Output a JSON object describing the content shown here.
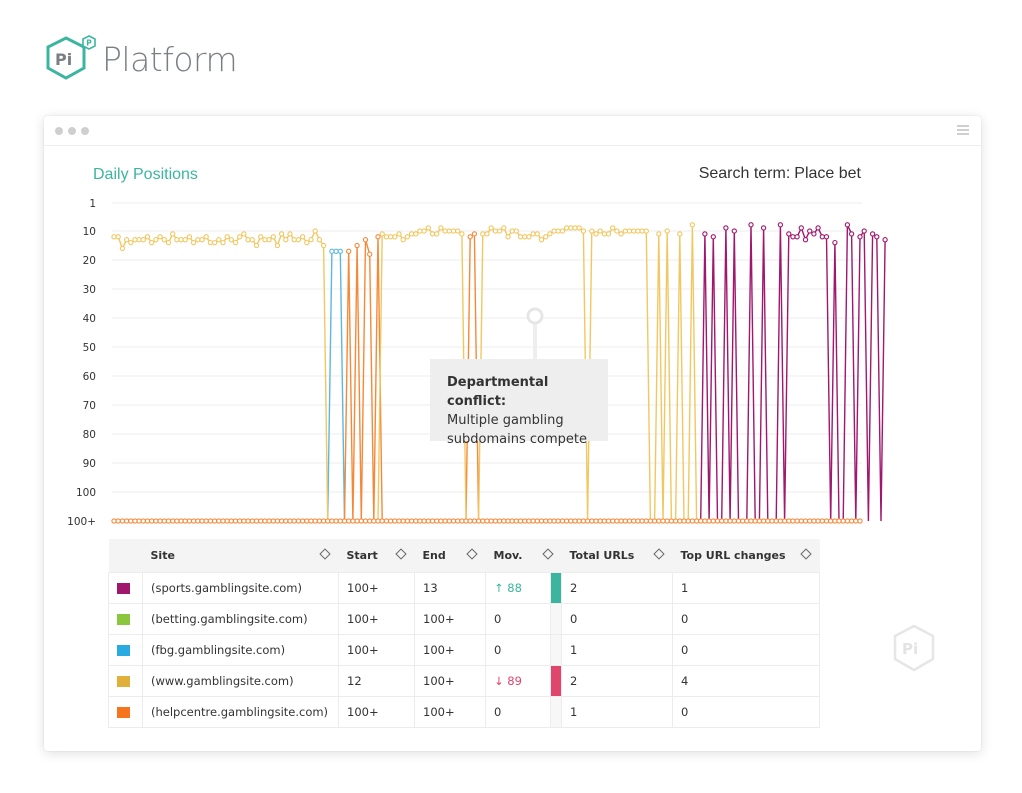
{
  "brand": {
    "logo_text": "Pi",
    "logo_superscript": "P",
    "name": "Platform",
    "color": "#3cb5a0"
  },
  "chart_title": "Daily Positions",
  "search_term": {
    "label": "Search term:",
    "value": "Place bet"
  },
  "callout": {
    "title": "Departmental conflict:",
    "line1": "Multiple gambling",
    "line2": "subdomains compete"
  },
  "chart_data": {
    "type": "line",
    "title": "Daily Positions",
    "xlabel": "",
    "ylabel": "",
    "y_reversed": true,
    "y_ticks": [
      "1",
      "10",
      "20",
      "30",
      "40",
      "50",
      "60",
      "70",
      "80",
      "90",
      "100",
      "100+"
    ],
    "ylim": [
      1,
      101
    ],
    "grid": true,
    "baseline_label": "100+",
    "series": [
      {
        "name": "(www.gamblingsite.com)",
        "color": "#f2c761",
        "values": [
          12,
          12,
          16,
          13,
          14,
          13,
          13,
          13,
          12,
          14,
          13,
          12,
          13,
          14,
          11,
          13,
          13,
          13,
          12,
          14,
          13,
          13,
          12,
          14,
          14,
          13,
          14,
          12,
          13,
          14,
          12,
          11,
          13,
          13,
          15,
          12,
          13,
          13,
          12,
          15,
          11,
          13,
          11,
          13,
          13,
          12,
          14,
          13,
          10,
          13,
          15,
          101,
          101,
          101,
          101,
          101,
          101,
          101,
          101,
          101,
          101,
          101,
          101,
          101,
          11,
          12,
          12,
          12,
          11,
          13,
          12,
          11,
          11,
          10,
          10,
          9,
          11,
          11,
          9,
          10,
          10,
          10,
          10,
          11,
          101,
          101,
          101,
          101,
          11,
          11,
          9,
          10,
          10,
          9,
          12,
          10,
          10,
          12,
          12,
          12,
          11,
          11,
          13,
          12,
          11,
          10,
          10,
          10,
          9,
          9,
          9,
          9,
          10,
          101,
          10,
          11,
          10,
          11,
          11,
          9,
          10,
          11,
          10,
          10,
          10,
          10,
          10,
          10,
          101,
          101,
          11,
          101,
          10,
          101,
          101,
          11,
          101,
          101,
          8,
          101,
          101,
          101,
          101,
          101,
          101,
          101,
          101,
          101,
          101,
          101,
          101,
          101,
          101,
          101,
          101,
          101,
          101,
          101,
          101,
          101,
          101,
          101,
          101,
          101,
          101,
          101,
          101,
          101,
          101,
          101,
          101,
          101,
          101,
          101,
          101,
          101,
          101,
          101,
          101
        ]
      },
      {
        "name": "(helpcentre.gamblingsite.com)",
        "color": "#f5893a",
        "values": [
          101,
          101,
          101,
          101,
          101,
          101,
          101,
          101,
          101,
          101,
          101,
          101,
          101,
          101,
          101,
          101,
          101,
          101,
          101,
          101,
          101,
          101,
          101,
          101,
          101,
          101,
          101,
          101,
          101,
          101,
          101,
          101,
          101,
          101,
          101,
          101,
          101,
          101,
          101,
          101,
          101,
          101,
          101,
          101,
          101,
          101,
          101,
          101,
          101,
          101,
          101,
          101,
          101,
          101,
          101,
          101,
          17,
          101,
          15,
          101,
          13,
          18,
          101,
          12,
          101,
          101,
          101,
          101,
          101,
          101,
          101,
          101,
          101,
          101,
          101,
          101,
          101,
          101,
          101,
          101,
          101,
          101,
          101,
          101,
          101,
          12,
          11,
          101,
          101,
          101,
          101,
          101,
          101,
          101,
          101,
          101,
          101,
          101,
          101,
          101,
          101,
          101,
          101,
          101,
          101,
          101,
          101,
          101,
          101,
          101,
          101,
          101,
          101,
          101,
          101,
          101,
          101,
          101,
          101,
          101,
          101,
          101,
          101,
          101,
          101,
          101,
          101,
          101,
          101,
          101,
          101,
          101,
          101,
          101,
          101,
          101,
          101,
          101,
          101,
          101,
          101,
          101,
          101,
          101,
          101,
          101,
          101,
          101,
          101,
          101,
          101,
          101,
          101,
          101,
          101,
          101,
          101,
          101,
          101,
          101,
          101,
          101,
          101,
          101,
          101,
          101,
          101,
          101,
          101,
          101,
          101,
          101,
          101,
          101,
          101,
          101,
          101,
          101,
          101
        ]
      },
      {
        "name": "(sports.gamblingsite.com)",
        "color": "#a0176e",
        "values": [
          101,
          101,
          101,
          101,
          101,
          101,
          101,
          101,
          101,
          101,
          101,
          101,
          101,
          101,
          101,
          101,
          101,
          101,
          101,
          101,
          101,
          101,
          101,
          101,
          101,
          101,
          101,
          101,
          101,
          101,
          101,
          101,
          101,
          101,
          101,
          101,
          101,
          101,
          101,
          101,
          101,
          101,
          101,
          101,
          101,
          101,
          101,
          101,
          101,
          101,
          101,
          101,
          101,
          101,
          101,
          101,
          101,
          101,
          101,
          101,
          101,
          101,
          101,
          101,
          101,
          101,
          101,
          101,
          101,
          101,
          101,
          101,
          101,
          101,
          101,
          101,
          101,
          101,
          101,
          101,
          101,
          101,
          101,
          101,
          101,
          101,
          101,
          101,
          101,
          101,
          101,
          101,
          101,
          101,
          101,
          101,
          101,
          101,
          101,
          101,
          101,
          101,
          101,
          101,
          101,
          101,
          101,
          101,
          101,
          101,
          101,
          101,
          101,
          101,
          101,
          101,
          101,
          101,
          101,
          101,
          101,
          101,
          101,
          101,
          101,
          101,
          101,
          101,
          101,
          101,
          101,
          101,
          101,
          101,
          101,
          101,
          101,
          101,
          101,
          101,
          101,
          11,
          101,
          12,
          101,
          101,
          9,
          101,
          10,
          101,
          101,
          101,
          8,
          101,
          101,
          9,
          101,
          101,
          101,
          8,
          101,
          11,
          12,
          12,
          9,
          13,
          10,
          11,
          9,
          12,
          12,
          101,
          14,
          101,
          101,
          8,
          11,
          101,
          12,
          10,
          101,
          11,
          12,
          101,
          13
        ]
      },
      {
        "name": "(fbg.gamblingsite.com)",
        "color": "#5cb8e0",
        "values": [
          101,
          101,
          101,
          101,
          101,
          101,
          101,
          101,
          101,
          101,
          101,
          101,
          101,
          101,
          101,
          101,
          101,
          101,
          101,
          101,
          101,
          101,
          101,
          101,
          101,
          101,
          101,
          101,
          101,
          101,
          101,
          101,
          101,
          101,
          101,
          101,
          101,
          101,
          101,
          101,
          101,
          101,
          101,
          101,
          101,
          101,
          101,
          101,
          101,
          101,
          101,
          101,
          17,
          17,
          17,
          101,
          101,
          101,
          101,
          101,
          101,
          101,
          101,
          101,
          101,
          101,
          101,
          101,
          101,
          101,
          101,
          101,
          101,
          101,
          101,
          101,
          101,
          101,
          101,
          101,
          101,
          101,
          101,
          101,
          101,
          101,
          101,
          101,
          101,
          101,
          101,
          101,
          101,
          101,
          101,
          101,
          101,
          101,
          101,
          101,
          101,
          101,
          101,
          101,
          101,
          101,
          101,
          101,
          101,
          101,
          101,
          101,
          101,
          101,
          101,
          101,
          101,
          101,
          101,
          101,
          101,
          101,
          101,
          101,
          101,
          101,
          101,
          101,
          101,
          101,
          101,
          101,
          101,
          101,
          101,
          101,
          101,
          101,
          101,
          101,
          101,
          101,
          101,
          101,
          101,
          101,
          101,
          101,
          101,
          101,
          101,
          101,
          101,
          101,
          101,
          101,
          101,
          101,
          101,
          101,
          101,
          101,
          101,
          101,
          101,
          101,
          101,
          101,
          101,
          101,
          101,
          101,
          101,
          101,
          101,
          101,
          101,
          101,
          101
        ]
      }
    ],
    "table": {
      "headers": [
        "Site",
        "Start",
        "End",
        "Mov.",
        "Total URLs",
        "Top URL changes"
      ],
      "rows": [
        {
          "color": "#a0176e",
          "site": "(sports.gamblingsite.com)",
          "start": "100+",
          "end": "13",
          "mov_arrow": "↑",
          "mov": "88",
          "mov_dir": "up",
          "total_urls": "2",
          "top_url_changes": "1"
        },
        {
          "color": "#8cc63f",
          "site": "(betting.gamblingsite.com)",
          "start": "100+",
          "end": "100+",
          "mov_arrow": "",
          "mov": "0",
          "mov_dir": "none",
          "total_urls": "0",
          "top_url_changes": "0"
        },
        {
          "color": "#29abe2",
          "site": "(fbg.gamblingsite.com)",
          "start": "100+",
          "end": "100+",
          "mov_arrow": "",
          "mov": "0",
          "mov_dir": "none",
          "total_urls": "1",
          "top_url_changes": "0"
        },
        {
          "color": "#e0b03a",
          "site": "(www.gamblingsite.com)",
          "start": "12",
          "end": "100+",
          "mov_arrow": "↓",
          "mov": "89",
          "mov_dir": "down",
          "total_urls": "2",
          "top_url_changes": "4"
        },
        {
          "color": "#f7741f",
          "site": "(helpcentre.gamblingsite.com)",
          "start": "100+",
          "end": "100+",
          "mov_arrow": "",
          "mov": "0",
          "mov_dir": "none",
          "total_urls": "1",
          "top_url_changes": "0"
        }
      ]
    }
  },
  "colors": {
    "accent": "#3cb5a0",
    "up": "#3cb5a0",
    "down": "#e0456b"
  },
  "icons": {
    "menu": "hamburger-menu-icon",
    "sort": "sort-diamond-icon",
    "watermark": "pi-hexagon-icon"
  }
}
